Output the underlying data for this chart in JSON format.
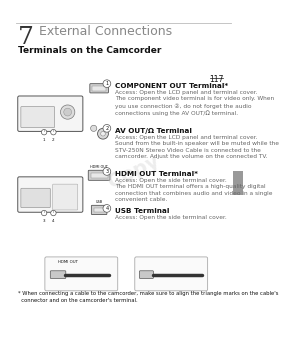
{
  "chapter_num": "7",
  "chapter_title": "External Connections",
  "section_title": "Terminals on the Camcorder",
  "page_num": "117",
  "footnote": "* When connecting a cable to the camcorder, make sure to align the triangle marks on the cable's\n  connector and on the camcorder's terminal.",
  "terminals": [
    {
      "num": 1,
      "title": "COMPONENT OUT Terminal*",
      "desc": "Access: Open the LCD panel and terminal cover.\nThe component video terminal is for video only. When\nyou use connection ②, do not forget the audio\nconnections using the AV OUT/Ω terminal."
    },
    {
      "num": 2,
      "title": "AV OUT/Ω Terminal",
      "desc": "Access: Open the LCD panel and terminal cover.\nSound from the built-in speaker will be muted while the\nSTV-250N Stereo Video Cable is connected to the\ncamcorder. Adjust the volume on the connected TV."
    },
    {
      "num": 3,
      "title": "HDMI OUT Terminal*",
      "desc": "Access: Open the side terminal cover.\nThe HDMI OUT terminal offers a high-quality digital\nconnection that combines audio and video in a single\nconvenient cable."
    },
    {
      "num": 4,
      "title": "USB Terminal",
      "desc": "Access: Open the side terminal cover."
    }
  ],
  "bg_color": "#ffffff",
  "text_color": "#111111",
  "gray_text": "#666666",
  "header_line_color": "#bbbbbb",
  "chapter_num_size": 18,
  "chapter_title_size": 9,
  "section_title_size": 6.5,
  "terminal_title_size": 5.2,
  "terminal_desc_size": 4.2,
  "page_num_size": 5.5,
  "footnote_size": 3.8
}
